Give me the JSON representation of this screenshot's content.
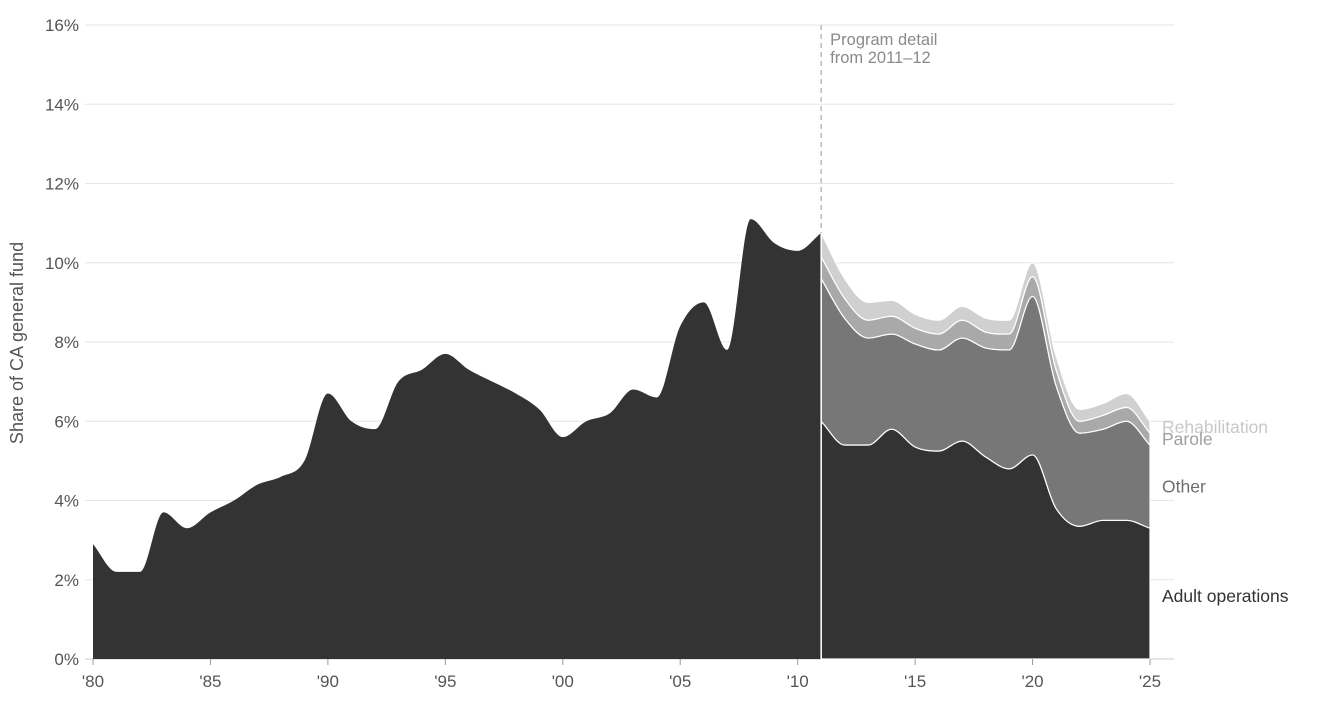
{
  "chart_data": {
    "type": "area",
    "stacked": true,
    "title": "",
    "xlabel": "",
    "ylabel": "Share of CA general fund",
    "xlim": [
      1980,
      2025
    ],
    "ylim": [
      0,
      16
    ],
    "grid": "horizontal",
    "y_ticks": [
      {
        "value": 0,
        "label": "0%"
      },
      {
        "value": 2,
        "label": "2%"
      },
      {
        "value": 4,
        "label": "4%"
      },
      {
        "value": 6,
        "label": "6%"
      },
      {
        "value": 8,
        "label": "8%"
      },
      {
        "value": 10,
        "label": "10%"
      },
      {
        "value": 12,
        "label": "12%"
      },
      {
        "value": 14,
        "label": "14%"
      },
      {
        "value": 16,
        "label": "16%"
      }
    ],
    "x_ticks": [
      {
        "value": 1980,
        "label": "'80"
      },
      {
        "value": 1985,
        "label": "'85"
      },
      {
        "value": 1990,
        "label": "'90"
      },
      {
        "value": 1995,
        "label": "'95"
      },
      {
        "value": 2000,
        "label": "'00"
      },
      {
        "value": 2005,
        "label": "'05"
      },
      {
        "value": 2010,
        "label": "'10"
      },
      {
        "value": 2015,
        "label": "'15"
      },
      {
        "value": 2020,
        "label": "'20"
      },
      {
        "value": 2025,
        "label": "'25"
      }
    ],
    "annotation": {
      "x": 2011,
      "lines": [
        "Program detail",
        "from 2011–12"
      ]
    },
    "series": [
      {
        "name": "Adult operations",
        "color": "#333333",
        "label_color": "#333333",
        "x": [
          1980,
          1981,
          1982,
          1983,
          1984,
          1985,
          1986,
          1987,
          1988,
          1989,
          1990,
          1991,
          1992,
          1993,
          1994,
          1995,
          1996,
          1997,
          1998,
          1999,
          2000,
          2001,
          2002,
          2003,
          2004,
          2005,
          2006,
          2007,
          2008,
          2009,
          2010,
          2011,
          2012,
          2013,
          2014,
          2015,
          2016,
          2017,
          2018,
          2019,
          2020,
          2021,
          2022,
          2023,
          2024,
          2025
        ],
        "values": [
          2.9,
          2.2,
          2.2,
          3.7,
          3.3,
          3.7,
          4.0,
          4.4,
          4.6,
          5.0,
          6.7,
          6.0,
          5.8,
          7.0,
          7.3,
          7.7,
          7.3,
          7.0,
          6.7,
          6.3,
          5.6,
          6.0,
          6.2,
          6.8,
          6.6,
          8.4,
          9.0,
          7.8,
          11.1,
          10.5,
          10.3,
          6.0,
          5.4,
          5.4,
          5.8,
          5.35,
          5.25,
          5.5,
          5.1,
          4.8,
          5.15,
          3.8,
          3.35,
          3.5,
          3.5,
          3.3
        ]
      },
      {
        "name": "Other",
        "color": "#777777",
        "label_color": "#6e6e6e",
        "x": [
          2011,
          2012,
          2013,
          2014,
          2015,
          2016,
          2017,
          2018,
          2019,
          2020,
          2021,
          2022,
          2023,
          2024,
          2025
        ],
        "values": [
          3.6,
          3.2,
          2.7,
          2.4,
          2.6,
          2.55,
          2.6,
          2.75,
          3.0,
          4.0,
          3.1,
          2.35,
          2.3,
          2.5,
          2.1
        ]
      },
      {
        "name": "Parole",
        "color": "#a9a9a9",
        "label_color": "#a0a0a0",
        "x": [
          2011,
          2012,
          2013,
          2014,
          2015,
          2016,
          2017,
          2018,
          2019,
          2020,
          2021,
          2022,
          2023,
          2024,
          2025
        ],
        "values": [
          0.55,
          0.5,
          0.45,
          0.45,
          0.4,
          0.4,
          0.45,
          0.4,
          0.4,
          0.5,
          0.4,
          0.3,
          0.35,
          0.35,
          0.3
        ]
      },
      {
        "name": "Rehabilitation",
        "color": "#d0d0d0",
        "label_color": "#c8c8c8",
        "x": [
          2011,
          2012,
          2013,
          2014,
          2015,
          2016,
          2017,
          2018,
          2019,
          2020,
          2021,
          2022,
          2023,
          2024,
          2025
        ],
        "values": [
          0.6,
          0.5,
          0.45,
          0.4,
          0.35,
          0.35,
          0.35,
          0.35,
          0.35,
          0.35,
          0.35,
          0.3,
          0.3,
          0.35,
          0.3
        ]
      }
    ]
  }
}
